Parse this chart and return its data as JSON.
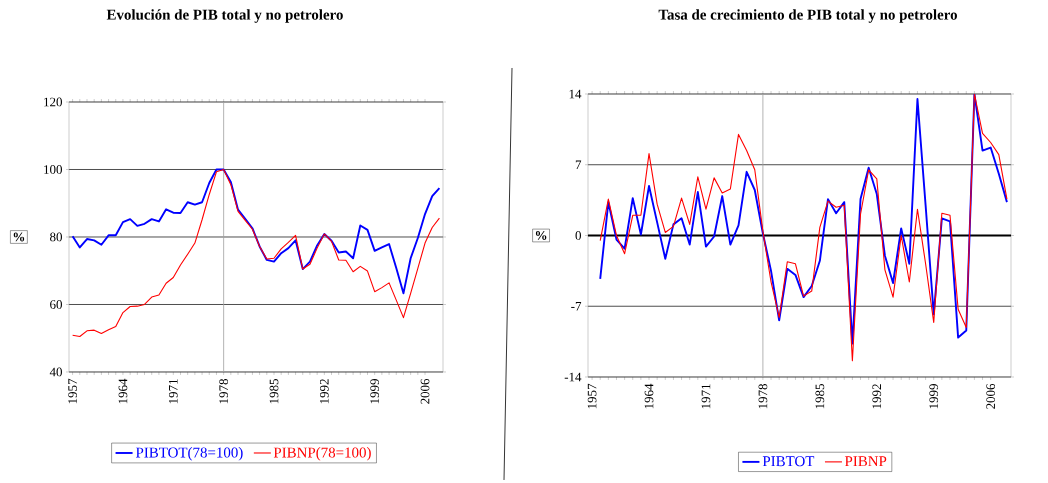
{
  "chart_data": [
    {
      "type": "line",
      "title": "Evolución de PIB total y no petrolero",
      "ylabel": "%",
      "x": [
        1957,
        1958,
        1959,
        1960,
        1961,
        1962,
        1963,
        1964,
        1965,
        1966,
        1967,
        1968,
        1969,
        1970,
        1971,
        1972,
        1973,
        1974,
        1975,
        1976,
        1977,
        1978,
        1979,
        1980,
        1981,
        1982,
        1983,
        1984,
        1985,
        1986,
        1987,
        1988,
        1989,
        1990,
        1991,
        1992,
        1993,
        1994,
        1995,
        1996,
        1997,
        1998,
        1999,
        2000,
        2001,
        2002,
        2003,
        2004,
        2005,
        2006,
        2007,
        2008
      ],
      "series": [
        {
          "name": "PIBTOT(78=100)",
          "color": "#0000ff",
          "values": [
            80.2,
            76.9,
            79.4,
            79.0,
            77.7,
            80.5,
            80.5,
            84.4,
            85.3,
            83.3,
            83.9,
            85.3,
            84.6,
            88.2,
            87.2,
            87.1,
            90.3,
            89.6,
            90.3,
            96.0,
            100,
            100,
            96.3,
            88.1,
            85.4,
            82.6,
            77.2,
            73.2,
            72.7,
            75.2,
            76.7,
            79.0,
            70.5,
            72.7,
            77.5,
            80.9,
            78.9,
            75.4,
            75.7,
            73.7,
            83.4,
            82.1,
            75.9,
            76.9,
            77.9,
            70.8,
            63.3,
            73.7,
            79.7,
            86.8,
            92.1,
            94.5
          ]
        },
        {
          "name": "PIBNP(78=100)",
          "color": "#ff0000",
          "values": [
            50.9,
            50.5,
            52.2,
            52.4,
            51.4,
            52.5,
            53.5,
            57.6,
            59.4,
            59.5,
            60.0,
            62.2,
            62.8,
            66.3,
            68.0,
            71.7,
            74.9,
            78.2,
            85.1,
            92.6,
            99.3,
            100,
            95.5,
            87.6,
            84.9,
            82.3,
            77.2,
            73.5,
            73.7,
            76.5,
            78.4,
            80.5,
            70.5,
            71.9,
            76.7,
            80.9,
            78.7,
            73.2,
            73.1,
            69.7,
            71.3,
            69.9,
            63.8,
            65.0,
            66.4,
            61.3,
            56.1,
            63.3,
            70.7,
            78.2,
            82.8,
            85.6
          ]
        }
      ],
      "xlim": [
        1956.5,
        2008.5
      ],
      "ylim": [
        40,
        120
      ],
      "xticks": [
        1957,
        1964,
        1971,
        1978,
        1985,
        1992,
        1999,
        2006
      ],
      "yticks": [
        40,
        60,
        80,
        100,
        120
      ],
      "grid": "y",
      "legend": "bottom",
      "line_style": "solid",
      "ref_lines": [
        {
          "axis": "x",
          "value": 1978,
          "color": "#a0a0a0"
        }
      ]
    },
    {
      "type": "line",
      "title": "Tasa de crecimiento de PIB total y no petrolero",
      "ylabel": "%",
      "x": [
        1958,
        1959,
        1960,
        1961,
        1962,
        1963,
        1964,
        1965,
        1966,
        1967,
        1968,
        1969,
        1970,
        1971,
        1972,
        1973,
        1974,
        1975,
        1976,
        1977,
        1978,
        1979,
        1980,
        1981,
        1982,
        1983,
        1984,
        1985,
        1986,
        1987,
        1988,
        1989,
        1990,
        1991,
        1992,
        1993,
        1994,
        1995,
        1996,
        1997,
        1998,
        1999,
        2000,
        2001,
        2002,
        2003,
        2004,
        2005,
        2006,
        2007,
        2008
      ],
      "series": [
        {
          "name": "PIBTOT",
          "color": "#0000ff",
          "values": [
            -4.3,
            3.3,
            -0.4,
            -1.3,
            3.7,
            0.1,
            4.9,
            1.3,
            -2.3,
            1.1,
            1.7,
            -0.9,
            4.3,
            -1.1,
            -0.1,
            3.9,
            -0.9,
            1.0,
            6.3,
            4.5,
            0.2,
            -3.5,
            -8.4,
            -3.3,
            -3.9,
            -6.1,
            -5.0,
            -2.5,
            3.6,
            2.2,
            3.3,
            -10.7,
            3.6,
            6.7,
            4.1,
            -2.0,
            -4.7,
            0.7,
            -2.8,
            13.5,
            3.0,
            -7.8,
            1.7,
            1.4,
            -10.1,
            -9.4,
            14.0,
            8.4,
            8.7,
            6.1,
            3.3
          ]
        },
        {
          "name": "PIBNP",
          "color": "#ff0000",
          "values": [
            -0.5,
            3.6,
            0,
            -1.8,
            2.0,
            2.0,
            8.1,
            3.1,
            0.3,
            0.9,
            3.7,
            1.1,
            5.8,
            2.6,
            5.7,
            4.2,
            4.6,
            10.0,
            8.4,
            6.5,
            0.4,
            -4.6,
            -8.1,
            -2.6,
            -2.8,
            -6.0,
            -5.5,
            0.8,
            3.4,
            2.8,
            3.0,
            -12.4,
            2.1,
            6.5,
            5.6,
            -3.4,
            -6.1,
            0,
            -4.6,
            2.6,
            -2.8,
            -8.6,
            2.2,
            2.0,
            -7.3,
            -9.1,
            14.0,
            10.1,
            9.2,
            8.0,
            3.6
          ]
        }
      ],
      "xlim": [
        1956.5,
        2008.5
      ],
      "ylim": [
        -14,
        14
      ],
      "xticks": [
        1957,
        1964,
        1971,
        1978,
        1985,
        1992,
        1999,
        2006
      ],
      "yticks": [
        -14,
        -7,
        0,
        7,
        14
      ],
      "grid": "y",
      "legend": "bottom",
      "line_style": "solid",
      "ref_lines": [
        {
          "axis": "y",
          "value": 0,
          "color": "#000000"
        },
        {
          "axis": "x",
          "value": 1978,
          "color": "#a0a0a0"
        }
      ]
    }
  ]
}
